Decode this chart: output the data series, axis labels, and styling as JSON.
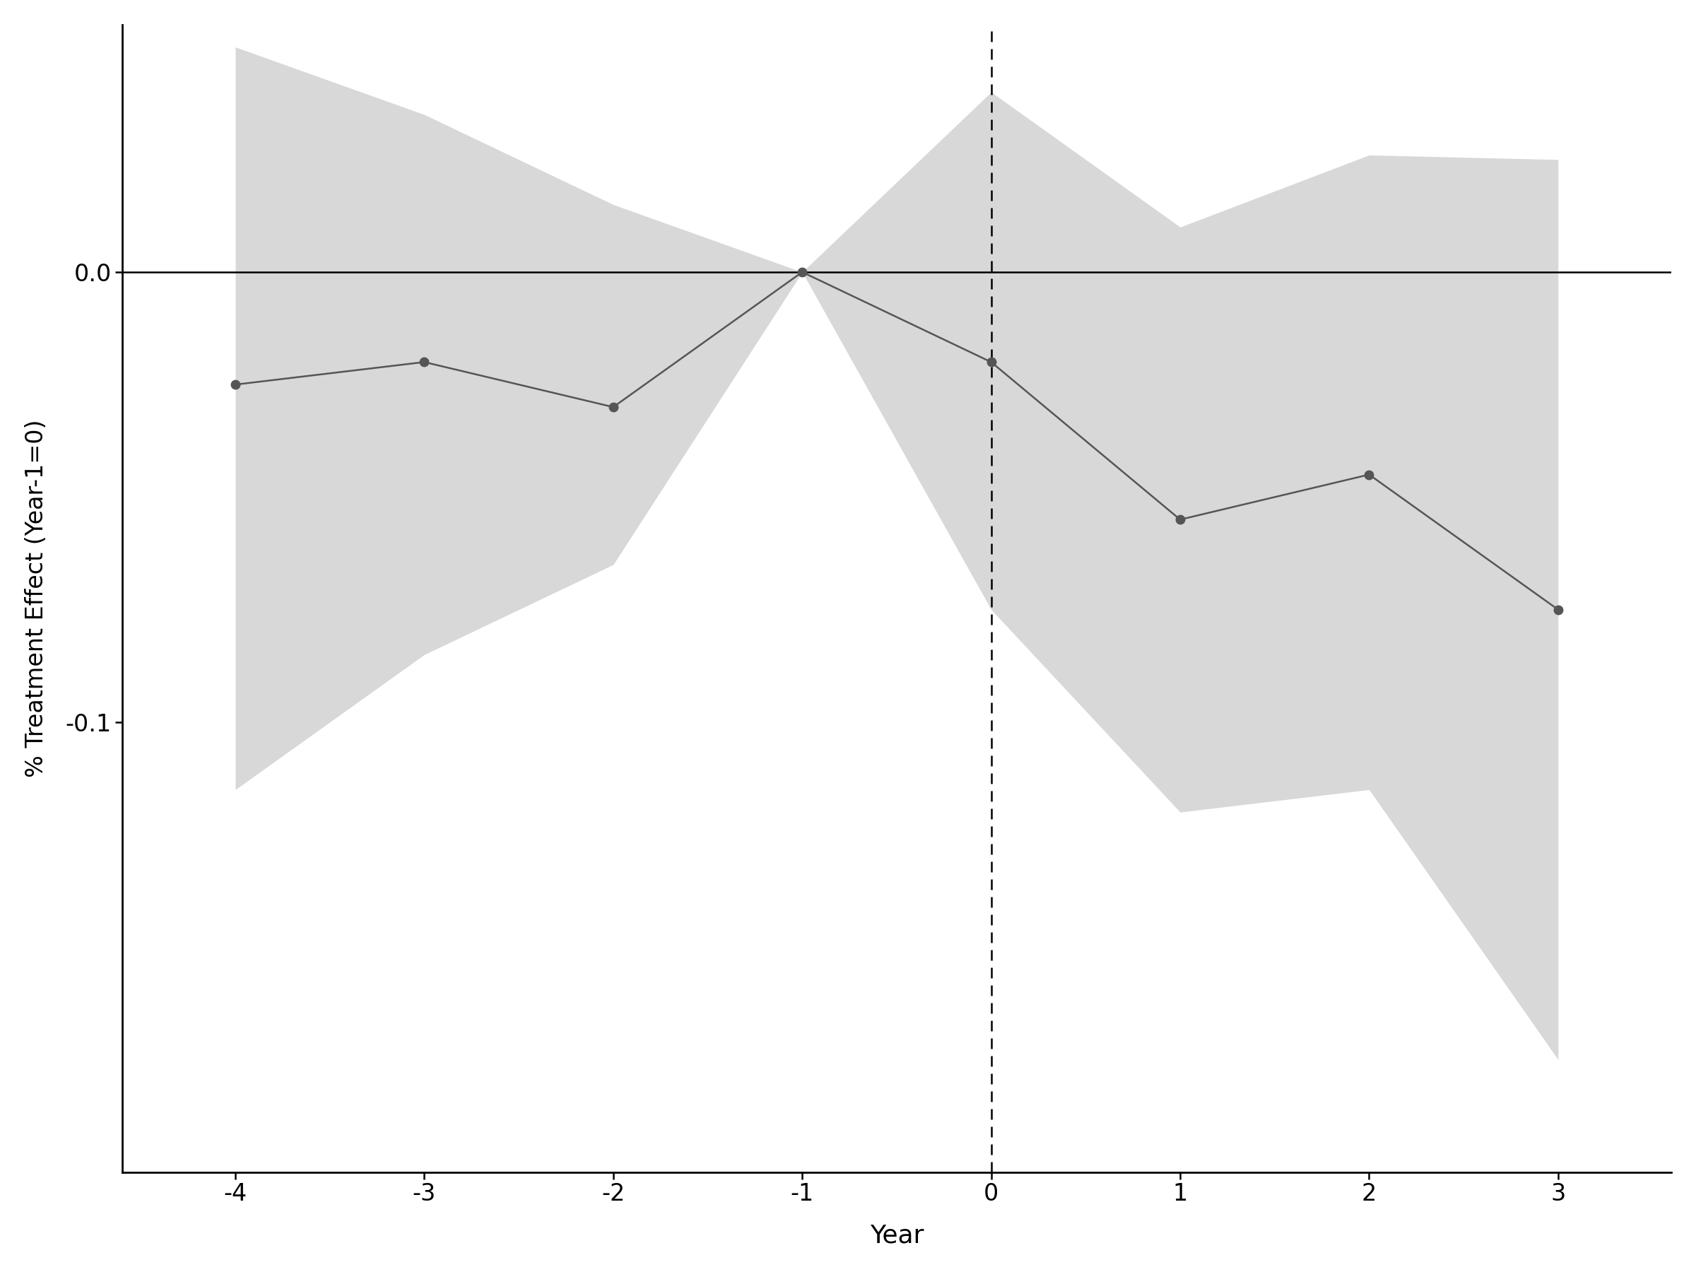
{
  "x": [
    -4,
    -3,
    -2,
    -1,
    0,
    1,
    2,
    3
  ],
  "y": [
    -0.025,
    -0.02,
    -0.03,
    0.0,
    -0.02,
    -0.055,
    -0.045,
    -0.075
  ],
  "ci_upper": [
    0.05,
    0.035,
    0.015,
    0.0,
    0.04,
    0.01,
    0.026,
    0.025
  ],
  "ci_lower": [
    -0.115,
    -0.085,
    -0.065,
    0.0,
    -0.075,
    -0.12,
    -0.115,
    -0.175
  ],
  "xlabel": "Year",
  "ylabel": "% Treatment Effect (Year-1=0)",
  "hline_y": 0.0,
  "vline_x": 0,
  "ylim": [
    -0.2,
    0.055
  ],
  "xlim": [
    -4.6,
    3.6
  ],
  "xticks": [
    -4,
    -3,
    -2,
    -1,
    0,
    1,
    2,
    3
  ],
  "ytick_values": [
    0.0,
    -0.1
  ],
  "ytick_labels": [
    "0.0",
    "-0.1"
  ],
  "line_color": "#555555",
  "marker_color": "#555555",
  "ci_color": "#d8d8d8",
  "ci_alpha": 1.0,
  "background_color": "#ffffff",
  "hline_color": "#000000",
  "vline_color": "#000000",
  "marker_size": 9,
  "line_width": 1.8,
  "xlabel_fontsize": 26,
  "ylabel_fontsize": 24,
  "tick_fontsize": 24
}
